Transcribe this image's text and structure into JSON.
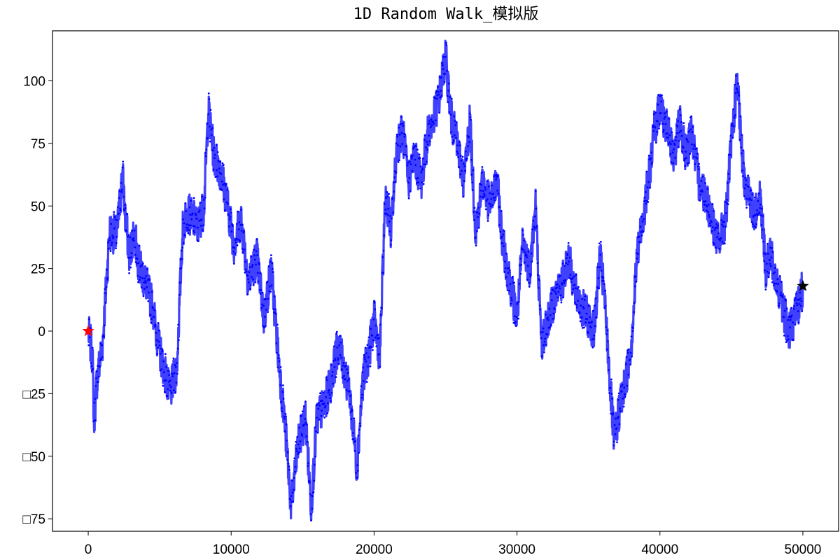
{
  "chart_data": {
    "type": "scatter",
    "title": "1D Random Walk_模拟版",
    "xlabel": "",
    "ylabel": "",
    "xlim": [
      -2500,
      52500
    ],
    "ylim": [
      -80,
      120
    ],
    "x_ticks": [
      0,
      10000,
      20000,
      30000,
      40000,
      50000
    ],
    "x_tick_labels": [
      "0",
      "10000",
      "20000",
      "30000",
      "40000",
      "50000"
    ],
    "y_ticks": [
      -75,
      -50,
      -25,
      0,
      25,
      50,
      75,
      100
    ],
    "y_tick_labels": [
      "□75",
      "□50",
      "□25",
      "0",
      "25",
      "50",
      "75",
      "100"
    ],
    "grid": false,
    "series": [
      {
        "marker": "dot",
        "color": "#0000ff",
        "n_steps": 50000,
        "x": [
          0,
          300,
          400,
          600,
          1000,
          1500,
          2000,
          2400,
          2600,
          2900,
          3200,
          3600,
          4000,
          4500,
          4900,
          5300,
          5700,
          6200,
          6600,
          6900,
          7300,
          7700,
          8100,
          8400,
          8800,
          9200,
          9600,
          10200,
          10700,
          11200,
          11800,
          12300,
          12800,
          13300,
          13800,
          14200,
          14700,
          15200,
          15600,
          16000,
          16500,
          17000,
          17500,
          17900,
          18300,
          18800,
          19200,
          19600,
          20000,
          20400,
          20800,
          21200,
          21600,
          22000,
          22400,
          22800,
          23300,
          23800,
          24200,
          24600,
          25000,
          25400,
          25800,
          26300,
          26700,
          27100,
          27600,
          28100,
          28600,
          29000,
          29500,
          30000,
          30400,
          30900,
          31300,
          31700,
          32200,
          32700,
          33200,
          33600,
          34100,
          34500,
          35000,
          35400,
          35800,
          36100,
          36500,
          36800,
          37200,
          37600,
          38000,
          38400,
          38800,
          39200,
          39600,
          40000,
          40500,
          41000,
          41400,
          41800,
          42200,
          42700,
          43200,
          43600,
          44100,
          44600,
          45000,
          45400,
          45800,
          46200,
          46600,
          47000,
          47400,
          47800,
          48200,
          48600,
          49000,
          49400,
          49700,
          50000
        ],
        "y": [
          0,
          -10,
          -37,
          -20,
          -5,
          40,
          38,
          63,
          45,
          30,
          40,
          25,
          20,
          10,
          -5,
          -15,
          -25,
          -15,
          40,
          48,
          45,
          42,
          50,
          88,
          70,
          65,
          55,
          35,
          45,
          20,
          30,
          5,
          25,
          -10,
          -40,
          -70,
          -45,
          -35,
          -70,
          -35,
          -30,
          -20,
          -5,
          -15,
          -25,
          -55,
          -20,
          -10,
          5,
          -10,
          55,
          40,
          75,
          80,
          60,
          70,
          60,
          80,
          85,
          95,
          110,
          85,
          75,
          60,
          85,
          40,
          60,
          50,
          60,
          35,
          20,
          5,
          35,
          25,
          50,
          -5,
          5,
          15,
          20,
          30,
          15,
          10,
          5,
          0,
          30,
          15,
          -20,
          -45,
          -30,
          -20,
          -5,
          30,
          45,
          60,
          80,
          90,
          80,
          70,
          85,
          70,
          80,
          60,
          55,
          45,
          35,
          45,
          75,
          100,
          65,
          55,
          45,
          55,
          25,
          30,
          20,
          10,
          0,
          5,
          10,
          18
        ]
      }
    ],
    "markers": [
      {
        "x": 0,
        "y": 0,
        "shape": "star",
        "color": "#ff0000"
      },
      {
        "x": 50000,
        "y": 18,
        "shape": "star",
        "color": "#000000"
      }
    ]
  }
}
